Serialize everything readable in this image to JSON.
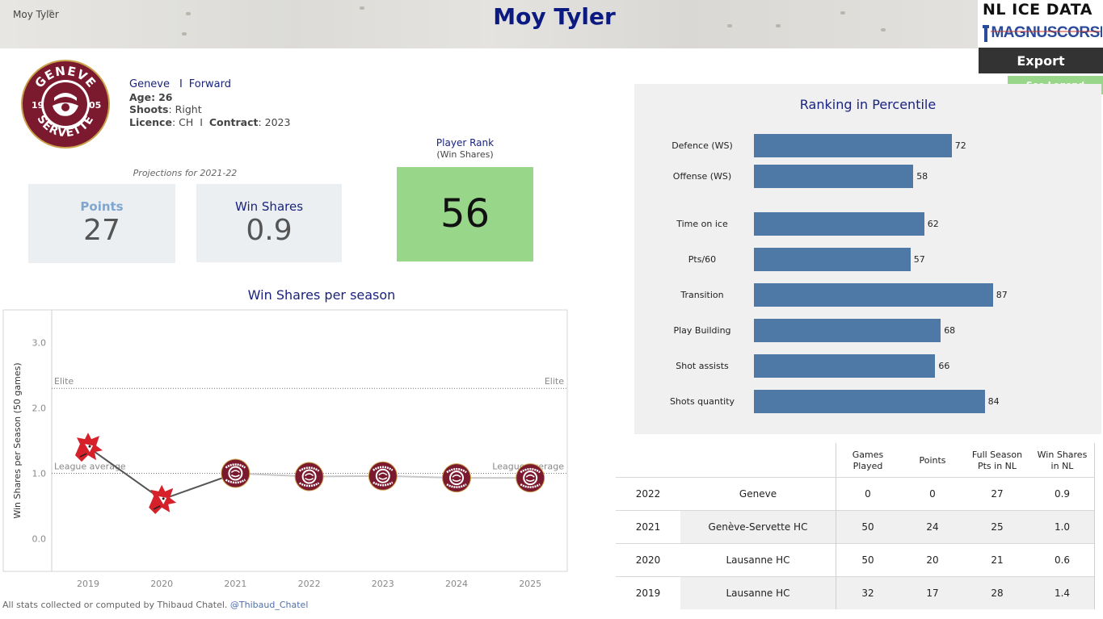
{
  "header": {
    "small_name": "Moy Tyler",
    "title": "Moy Tyler",
    "brand_top": "NL ICE DATA",
    "brand_bottom": "MAGNUSCORSI",
    "export_label": "Export",
    "legend_label": "See Legend"
  },
  "team_logo": {
    "text_top": "GENEVE",
    "text_bottom": "SERVETTE",
    "year_left": "19",
    "year_right": "05",
    "colors": {
      "outer": "#7b1a2e",
      "gold": "#c9a24b",
      "white": "#ffffff"
    }
  },
  "player": {
    "team": "Geneve",
    "separator": "I",
    "position": "Forward",
    "age_label": "Age:",
    "age": "26",
    "shoots_label": "Shoots",
    "shoots": ": Right",
    "licence_label": "Licence",
    "licence": ": CH",
    "sep2": "I",
    "contract_label": "Contract",
    "contract": ": 2023"
  },
  "projections": {
    "caption": "Projections for 2021-22",
    "points_label": "Points",
    "points_value": "27",
    "ws_label": "Win Shares",
    "ws_value": "0.9"
  },
  "player_rank": {
    "title": "Player Rank",
    "subtitle": "(Win Shares)",
    "value": "56"
  },
  "ws_chart": {
    "title": "Win Shares per season"
  },
  "chart_data": [
    {
      "type": "line",
      "title": "Win Shares per season",
      "ylabel": "Win Shares per Season (50 games)",
      "xlabel": "",
      "x": [
        "2019",
        "2020",
        "2021",
        "2022",
        "2023",
        "2024",
        "2025"
      ],
      "series": [
        {
          "values": [
            1.4,
            0.6,
            1.0,
            0.95,
            0.96,
            0.93,
            0.93
          ]
        }
      ],
      "team_markers": [
        "lausanne",
        "lausanne",
        "geneve",
        "geneve",
        "geneve",
        "geneve",
        "geneve"
      ],
      "y_ticks": [
        "0.0",
        "1.0",
        "2.0",
        "3.0"
      ],
      "ylim": [
        -0.5,
        3.5
      ],
      "reference_lines": [
        {
          "label": "Elite",
          "value": 2.3
        },
        {
          "label": "League average",
          "value": 1.0
        }
      ],
      "colors": {
        "line": "#555555",
        "line_faded": "#c8c8c8",
        "ref": "#777777"
      }
    },
    {
      "type": "bar",
      "title": "Ranking in Percentile",
      "categories": [
        "Defence (WS)",
        "Offense (WS)",
        "Time on ice",
        "Pts/60",
        "Transition",
        "Play Building",
        "Shot assists",
        "Shots quantity"
      ],
      "values": [
        72,
        58,
        62,
        57,
        87,
        68,
        66,
        84
      ],
      "xlim": [
        0,
        100
      ],
      "colors": {
        "bar": "#4e79a7"
      }
    }
  ],
  "career_table": {
    "headers": [
      "",
      "",
      "Games\nPlayed",
      "Points",
      "Full Season\nPts in NL",
      "Win Shares\nin NL"
    ],
    "rows": [
      [
        "2022",
        "Geneve",
        "0",
        "0",
        "27",
        "0.9"
      ],
      [
        "2021",
        "Genève-Servette HC",
        "50",
        "24",
        "25",
        "1.0"
      ],
      [
        "2020",
        "Lausanne HC",
        "50",
        "20",
        "21",
        "0.6"
      ],
      [
        "2019",
        "Lausanne HC",
        "32",
        "17",
        "28",
        "1.4"
      ]
    ]
  },
  "footer": {
    "text": "All stats collected or computed by Thibaud Chatel.",
    "twitter": "@Thibaud_Chatel"
  }
}
